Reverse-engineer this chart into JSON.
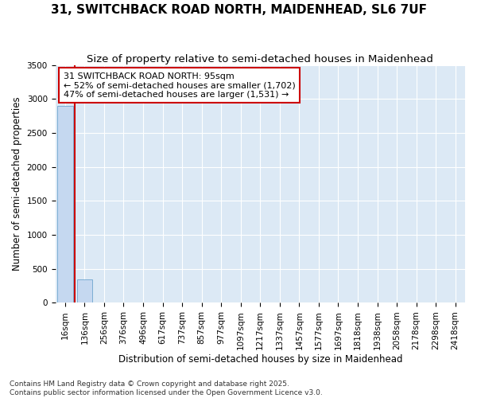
{
  "title": "31, SWITCHBACK ROAD NORTH, MAIDENHEAD, SL6 7UF",
  "subtitle": "Size of property relative to semi-detached houses in Maidenhead",
  "xlabel": "Distribution of semi-detached houses by size in Maidenhead",
  "ylabel": "Number of semi-detached properties",
  "categories": [
    "16sqm",
    "136sqm",
    "256sqm",
    "376sqm",
    "496sqm",
    "617sqm",
    "737sqm",
    "857sqm",
    "977sqm",
    "1097sqm",
    "1217sqm",
    "1337sqm",
    "1457sqm",
    "1577sqm",
    "1697sqm",
    "1818sqm",
    "1938sqm",
    "2058sqm",
    "2178sqm",
    "2298sqm",
    "2418sqm"
  ],
  "values": [
    2900,
    350,
    0,
    0,
    0,
    0,
    0,
    0,
    0,
    0,
    0,
    0,
    0,
    0,
    0,
    0,
    0,
    0,
    0,
    0,
    0
  ],
  "bar_color": "#c5d8f0",
  "bar_edge_color": "#7badd4",
  "vline_color": "#cc0000",
  "annotation_text": "31 SWITCHBACK ROAD NORTH: 95sqm\n← 52% of semi-detached houses are smaller (1,702)\n47% of semi-detached houses are larger (1,531) →",
  "annotation_box_facecolor": "#ffffff",
  "annotation_box_edgecolor": "#cc0000",
  "ylim": [
    0,
    3500
  ],
  "yticks": [
    0,
    500,
    1000,
    1500,
    2000,
    2500,
    3000,
    3500
  ],
  "plot_bg_color": "#dce9f5",
  "fig_bg_color": "#ffffff",
  "grid_color": "#ffffff",
  "footer_text": "Contains HM Land Registry data © Crown copyright and database right 2025.\nContains public sector information licensed under the Open Government Licence v3.0.",
  "title_fontsize": 11,
  "subtitle_fontsize": 9.5,
  "axis_label_fontsize": 8.5,
  "tick_fontsize": 7.5,
  "annotation_fontsize": 8,
  "footer_fontsize": 6.5
}
